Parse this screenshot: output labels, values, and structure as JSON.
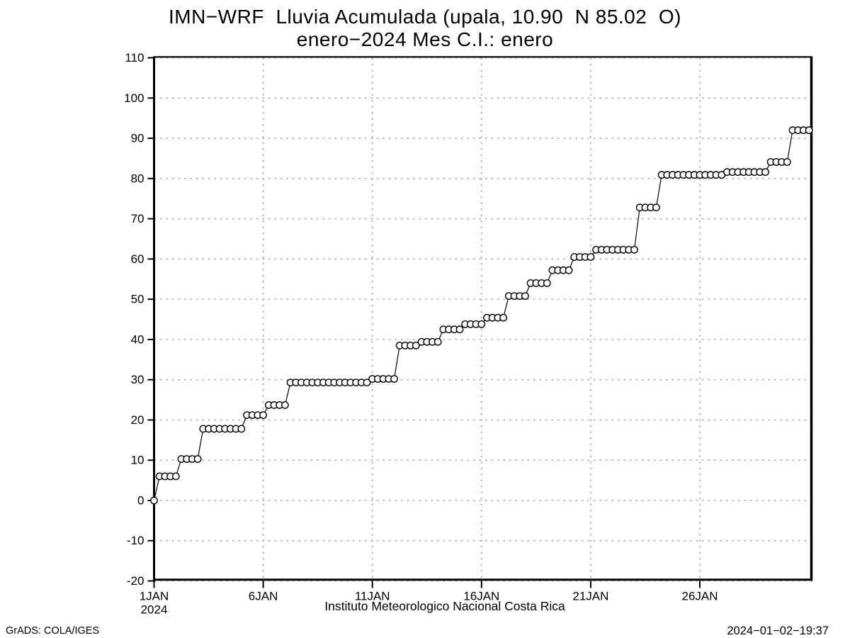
{
  "header": {
    "title_line1": "IMN−WRF  Lluvia Acumulada (upala, 10.90  N 85.02  O)",
    "title_line2": "enero−2024 Mes C.I.: enero"
  },
  "footer": {
    "caption": "Instituto Meteorologico Nacional Costa Rica",
    "attribution": "GrADS: COLA/IGES",
    "timestamp": "2024−01−02−19:37"
  },
  "chart_data": {
    "type": "line",
    "title": "IMN-WRF Lluvia Acumulada (upala, 10.90 N 85.02 O)",
    "subtitle": "enero-2024 Mes C.I.: enero",
    "xlabel": "",
    "ylabel": "",
    "x_axis": {
      "start": "1JAN2024 00:00",
      "interval_hours": 6,
      "tick_labels": [
        "1JAN",
        "6JAN",
        "11JAN",
        "16JAN",
        "21JAN",
        "26JAN"
      ],
      "tick_days": [
        1,
        6,
        11,
        16,
        21,
        26
      ],
      "year_label": "2024",
      "day_range": [
        1,
        31.4
      ]
    },
    "y_axis": {
      "min": -20,
      "max": 110,
      "tick_step": 10,
      "tick_labels": [
        "-20",
        "-10",
        "0",
        "10",
        "20",
        "30",
        "40",
        "50",
        "60",
        "70",
        "80",
        "90",
        "100",
        "110"
      ]
    },
    "grid": {
      "style": "dashed",
      "color": "#a9a9a9"
    },
    "legend": "none",
    "series": [
      {
        "name": "lluvia-acumulada",
        "marker": "open-circle",
        "line_color": "#000000",
        "marker_fill": "#ffffff",
        "values": [
          0,
          6,
          6,
          6,
          6,
          10.3,
          10.3,
          10.3,
          10.3,
          17.8,
          17.8,
          17.8,
          17.8,
          17.8,
          17.8,
          17.8,
          17.8,
          21.2,
          21.2,
          21.2,
          21.2,
          23.7,
          23.7,
          23.7,
          23.7,
          29.3,
          29.3,
          29.3,
          29.3,
          29.3,
          29.3,
          29.3,
          29.3,
          29.3,
          29.3,
          29.3,
          29.3,
          29.3,
          29.3,
          29.3,
          30.2,
          30.2,
          30.2,
          30.2,
          30.2,
          38.5,
          38.5,
          38.5,
          38.5,
          39.4,
          39.4,
          39.4,
          39.4,
          42.5,
          42.5,
          42.5,
          42.5,
          43.8,
          43.8,
          43.8,
          43.8,
          45.4,
          45.4,
          45.4,
          45.4,
          50.8,
          50.8,
          50.8,
          50.8,
          54.0,
          54.0,
          54.0,
          54.0,
          57.2,
          57.2,
          57.2,
          57.2,
          60.5,
          60.5,
          60.5,
          60.5,
          62.3,
          62.3,
          62.3,
          62.3,
          62.3,
          62.3,
          62.3,
          62.3,
          72.8,
          72.8,
          72.8,
          72.8,
          80.9,
          80.9,
          80.9,
          80.9,
          80.9,
          80.9,
          80.9,
          80.9,
          80.9,
          80.9,
          80.9,
          80.9,
          81.6,
          81.6,
          81.6,
          81.6,
          81.6,
          81.6,
          81.6,
          81.6,
          84.1,
          84.1,
          84.1,
          84.1,
          92.0,
          92.0,
          92.0,
          92.0
        ]
      }
    ]
  }
}
